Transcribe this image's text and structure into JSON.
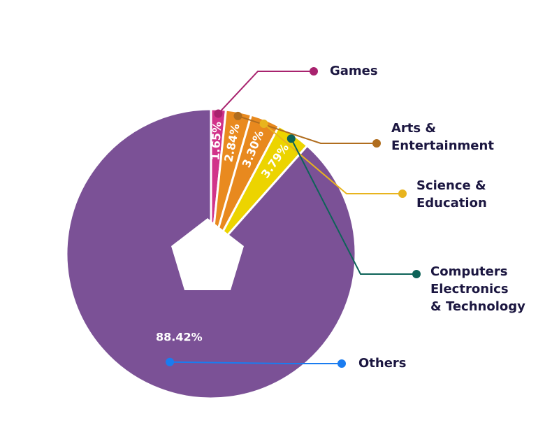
{
  "chart_data": {
    "type": "pie",
    "categories": [
      "Games",
      "Arts &\nEntertainment",
      "Science &\nEducation",
      "Computers\nElectronics\n& Technology",
      "Others"
    ],
    "values": [
      1.65,
      2.84,
      3.3,
      3.79,
      88.42
    ],
    "value_labels": [
      "1.65%",
      "2.84%",
      "3.30%",
      "3.79%",
      "88.42%"
    ],
    "colors": [
      "#d1338a",
      "#e98a1f",
      "#e8891e",
      "#ecd400",
      "#7b5196"
    ],
    "legend_colors": [
      "#a8226e",
      "#b06d1e",
      "#e8b41e",
      "#0d6358",
      "#1a7cf0"
    ]
  }
}
